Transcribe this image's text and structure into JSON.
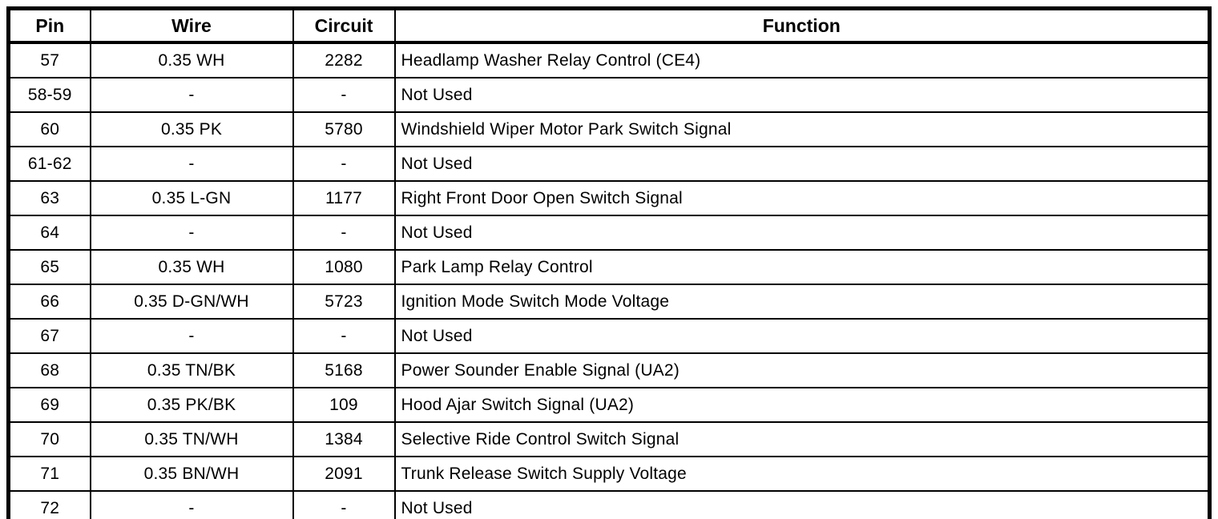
{
  "colors": {
    "background": "#ffffff",
    "border": "#000000",
    "text": "#000000"
  },
  "table": {
    "columns": [
      {
        "label": "Pin"
      },
      {
        "label": "Wire"
      },
      {
        "label": "Circuit"
      },
      {
        "label": "Function"
      }
    ],
    "rows": [
      {
        "pin": "57",
        "wire": "0.35 WH",
        "circuit": "2282",
        "function": "Headlamp Washer Relay Control (CE4)"
      },
      {
        "pin": "58-59",
        "wire": "-",
        "circuit": "-",
        "function": "Not Used"
      },
      {
        "pin": "60",
        "wire": "0.35 PK",
        "circuit": "5780",
        "function": "Windshield Wiper Motor Park Switch Signal"
      },
      {
        "pin": "61-62",
        "wire": "-",
        "circuit": "-",
        "function": "Not Used"
      },
      {
        "pin": "63",
        "wire": "0.35 L-GN",
        "circuit": "1177",
        "function": "Right Front Door Open Switch Signal"
      },
      {
        "pin": "64",
        "wire": "-",
        "circuit": "-",
        "function": "Not Used"
      },
      {
        "pin": "65",
        "wire": "0.35 WH",
        "circuit": "1080",
        "function": "Park Lamp Relay Control"
      },
      {
        "pin": "66",
        "wire": "0.35 D-GN/WH",
        "circuit": "5723",
        "function": "Ignition Mode Switch Mode Voltage"
      },
      {
        "pin": "67",
        "wire": "-",
        "circuit": "-",
        "function": "Not Used"
      },
      {
        "pin": "68",
        "wire": "0.35 TN/BK",
        "circuit": "5168",
        "function": "Power Sounder Enable Signal (UA2)"
      },
      {
        "pin": "69",
        "wire": "0.35 PK/BK",
        "circuit": "109",
        "function": "Hood Ajar Switch Signal (UA2)"
      },
      {
        "pin": "70",
        "wire": "0.35 TN/WH",
        "circuit": "1384",
        "function": "Selective Ride Control Switch Signal"
      },
      {
        "pin": "71",
        "wire": "0.35 BN/WH",
        "circuit": "2091",
        "function": "Trunk Release Switch Supply Voltage"
      },
      {
        "pin": "72",
        "wire": "-",
        "circuit": "-",
        "function": "Not Used"
      }
    ]
  }
}
